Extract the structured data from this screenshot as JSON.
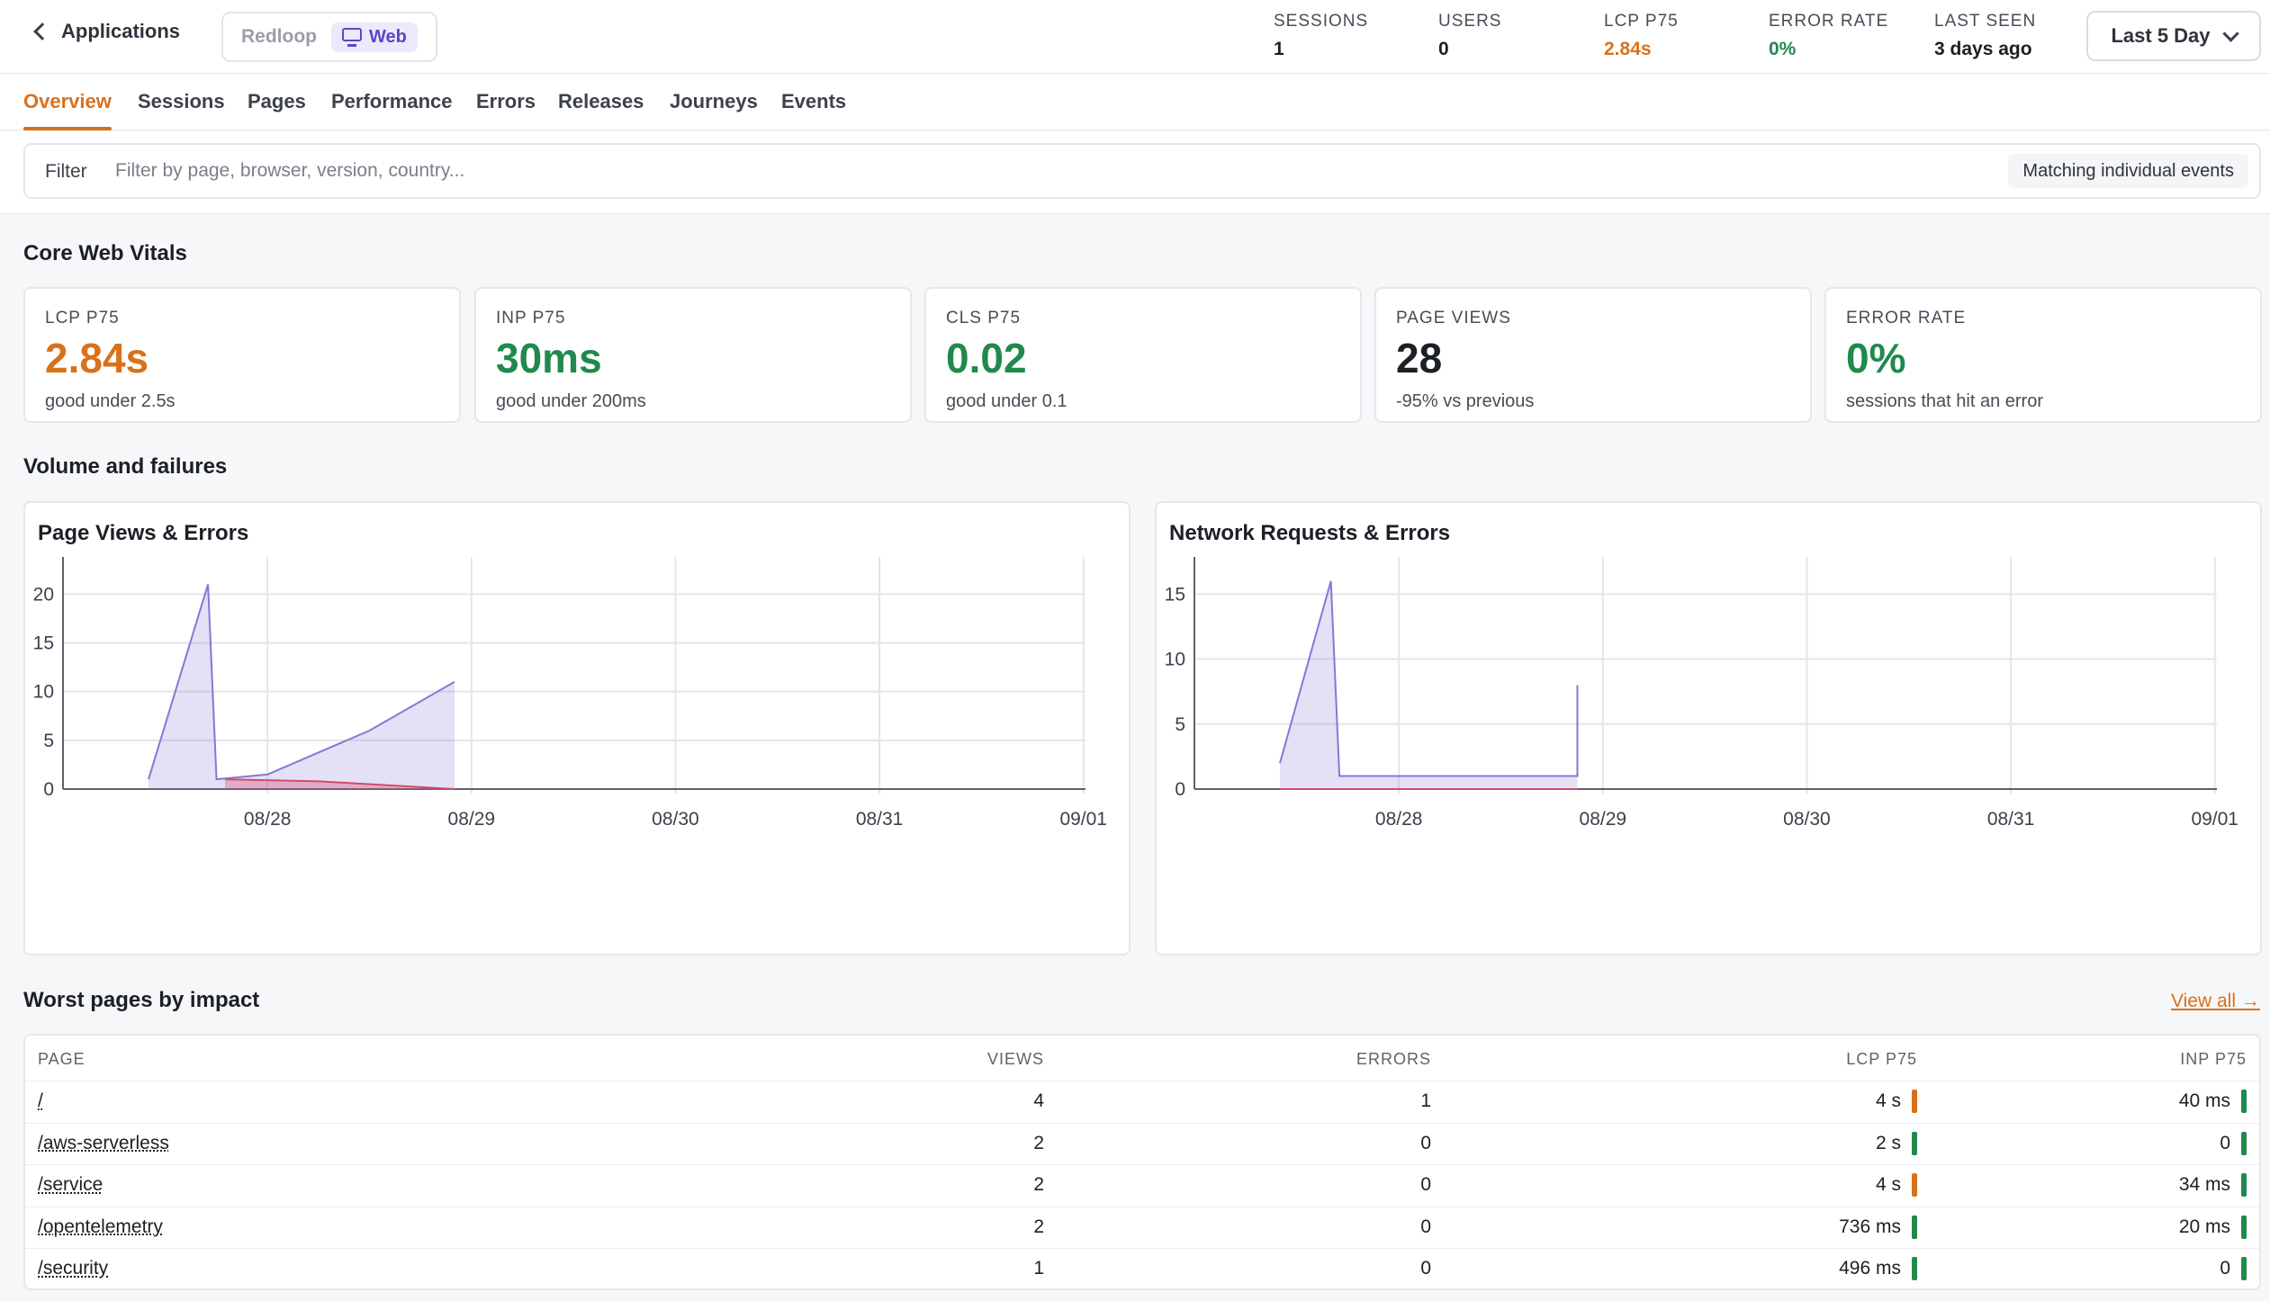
{
  "header": {
    "back_label": "Applications",
    "app_name": "Redloop",
    "platform": "Web",
    "stats": [
      {
        "label": "SESSIONS",
        "value": "1",
        "color": "#1c1f26"
      },
      {
        "label": "USERS",
        "value": "0",
        "color": "#1c1f26"
      },
      {
        "label": "LCP P75",
        "value": "2.84s",
        "color": "#d9711a"
      },
      {
        "label": "ERROR RATE",
        "value": "0%",
        "color": "#1f8a4c"
      },
      {
        "label": "LAST SEEN",
        "value": "3 days ago",
        "color": "#1c1f26"
      }
    ],
    "range_label": "Last 5 Day"
  },
  "tabs": [
    {
      "label": "Overview",
      "active": true
    },
    {
      "label": "Sessions"
    },
    {
      "label": "Pages"
    },
    {
      "label": "Performance"
    },
    {
      "label": "Errors"
    },
    {
      "label": "Releases"
    },
    {
      "label": "Journeys"
    },
    {
      "label": "Events"
    }
  ],
  "filter": {
    "label": "Filter",
    "placeholder": "Filter by page, browser, version, country...",
    "mode": "Matching individual events"
  },
  "sections": {
    "vitals_title": "Core Web Vitals",
    "volume_title": "Volume and failures",
    "worst_title": "Worst pages by impact",
    "view_all": "View all →"
  },
  "vitals": [
    {
      "label": "LCP P75",
      "value": "2.84s",
      "sub": "good under 2.5s",
      "color": "#d9711a"
    },
    {
      "label": "INP P75",
      "value": "30ms",
      "sub": "good under 200ms",
      "color": "#1f8a4c"
    },
    {
      "label": "CLS P75",
      "value": "0.02",
      "sub": "good under 0.1",
      "color": "#1f8a4c"
    },
    {
      "label": "PAGE VIEWS",
      "value": "28",
      "sub": "-95% vs previous",
      "color": "#1c1f26"
    },
    {
      "label": "ERROR RATE",
      "value": "0%",
      "sub": "sessions that hit an error",
      "color": "#1f8a4c"
    }
  ],
  "chart_data": [
    {
      "type": "area",
      "title": "Page Views & Errors",
      "xlabel": "",
      "ylabel": "",
      "x_ticks": [
        "08/28",
        "08/29",
        "08/30",
        "08/31",
        "09/01"
      ],
      "ylim": [
        0,
        24
      ],
      "y_ticks": [
        0,
        5,
        10,
        15,
        20
      ],
      "grid": true,
      "colors": {
        "views": "#8677d6",
        "errors": "#d44b66"
      },
      "series": [
        {
          "name": "",
          "points": [
            {
              "x": "08/27 10:00",
              "y": 1
            },
            {
              "x": "08/27 17:00",
              "y": 21
            },
            {
              "x": "08/27 18:00",
              "y": 1
            },
            {
              "x": "08/28 00:00",
              "y": 1.5
            },
            {
              "x": "08/28 12:00",
              "y": 6
            },
            {
              "x": "08/28 22:00",
              "y": 11
            }
          ]
        },
        {
          "name": "",
          "points": [
            {
              "x": "08/27 19:00",
              "y": 1
            },
            {
              "x": "08/28 06:00",
              "y": 0.8
            },
            {
              "x": "08/28 22:00",
              "y": 0
            }
          ]
        }
      ]
    },
    {
      "type": "area",
      "title": "Network Requests & Errors",
      "xlabel": "",
      "ylabel": "",
      "x_ticks": [
        "08/28",
        "08/29",
        "08/30",
        "08/31",
        "09/01"
      ],
      "ylim": [
        0,
        18
      ],
      "y_ticks": [
        0,
        5,
        10,
        15
      ],
      "grid": true,
      "colors": {
        "requests": "#8677d6",
        "errors": "#d44b66"
      },
      "series": [
        {
          "name": "",
          "points": [
            {
              "x": "08/27 10:00",
              "y": 2
            },
            {
              "x": "08/27 16:00",
              "y": 16
            },
            {
              "x": "08/27 17:00",
              "y": 1
            },
            {
              "x": "08/28 21:00",
              "y": 1
            },
            {
              "x": "08/28 21:00",
              "y": 8
            }
          ]
        },
        {
          "name": "",
          "points": [
            {
              "x": "08/27 10:00",
              "y": 0
            },
            {
              "x": "08/28 21:00",
              "y": 0
            }
          ]
        }
      ]
    }
  ],
  "table": {
    "columns": [
      "PAGE",
      "VIEWS",
      "ERRORS",
      "LCP P75",
      "INP P75"
    ],
    "rows": [
      {
        "page": "/",
        "views": "4",
        "errors": "1",
        "lcp": "4 s",
        "lcp_status": "#d9711a",
        "inp": "40 ms",
        "inp_status": "#1f8a4c"
      },
      {
        "page": "/aws-serverless",
        "views": "2",
        "errors": "0",
        "lcp": "2 s",
        "lcp_status": "#1f8a4c",
        "inp": "0",
        "inp_status": "#1f8a4c"
      },
      {
        "page": "/service",
        "views": "2",
        "errors": "0",
        "lcp": "4 s",
        "lcp_status": "#d9711a",
        "inp": "34 ms",
        "inp_status": "#1f8a4c"
      },
      {
        "page": "/opentelemetry",
        "views": "2",
        "errors": "0",
        "lcp": "736 ms",
        "lcp_status": "#1f8a4c",
        "inp": "20 ms",
        "inp_status": "#1f8a4c"
      },
      {
        "page": "/security",
        "views": "1",
        "errors": "0",
        "lcp": "496 ms",
        "lcp_status": "#1f8a4c",
        "inp": "0",
        "inp_status": "#1f8a4c"
      }
    ]
  }
}
